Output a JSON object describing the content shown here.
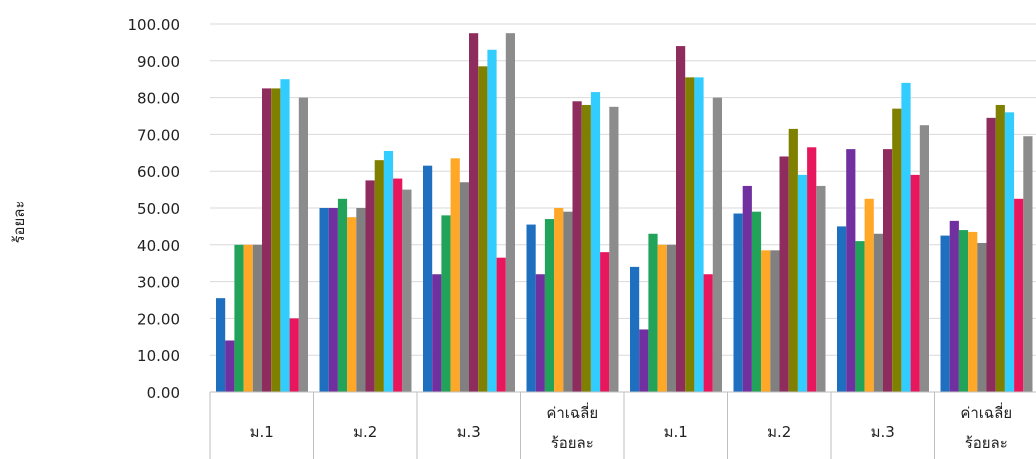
{
  "chart_data": {
    "type": "bar",
    "ylabel": "ร้อยละ",
    "ylim": [
      0,
      100
    ],
    "yticks": [
      "0.00",
      "10.00",
      "20.00",
      "30.00",
      "40.00",
      "50.00",
      "60.00",
      "70.00",
      "80.00",
      "90.00",
      "100.00"
    ],
    "grid": true,
    "categories": [
      {
        "line1": "ม.1",
        "line2": ""
      },
      {
        "line1": "ม.2",
        "line2": ""
      },
      {
        "line1": "ม.3",
        "line2": ""
      },
      {
        "line1": "ค่าเฉลี่ย",
        "line2": "ร้อยละ"
      },
      {
        "line1": "ม.1",
        "line2": ""
      },
      {
        "line1": "ม.2",
        "line2": ""
      },
      {
        "line1": "ม.3",
        "line2": ""
      },
      {
        "line1": "ค่าเฉลี่ย",
        "line2": "ร้อยละ"
      }
    ],
    "colors": [
      "#1f6fc0",
      "#7030a0",
      "#22a35a",
      "#ffa726",
      "#808080",
      "#8e2c5e",
      "#808000",
      "#33ccff",
      "#e8175d",
      "#8c8c8c"
    ],
    "values": [
      [
        25.5,
        14,
        40,
        40,
        40,
        82.5,
        82.5,
        85,
        20,
        80
      ],
      [
        50,
        50,
        52.5,
        47.5,
        50,
        57.5,
        63,
        65.5,
        58,
        55
      ],
      [
        61.5,
        32,
        48,
        63.5,
        57,
        97.5,
        88.5,
        93,
        36.5,
        97.5
      ],
      [
        45.5,
        32,
        47,
        50,
        49,
        79,
        78,
        81.5,
        38,
        77.5
      ],
      [
        34,
        17,
        43,
        40,
        40,
        94,
        85.5,
        85.5,
        32,
        80
      ],
      [
        48.5,
        56,
        49,
        38.5,
        38.5,
        64,
        71.5,
        59,
        66.5,
        56
      ],
      [
        45,
        66,
        41,
        52.5,
        43,
        66,
        77,
        84,
        59,
        72.5
      ],
      [
        42.5,
        46.5,
        44,
        43.5,
        40.5,
        74.5,
        78,
        76,
        52.5,
        69.5
      ]
    ]
  }
}
